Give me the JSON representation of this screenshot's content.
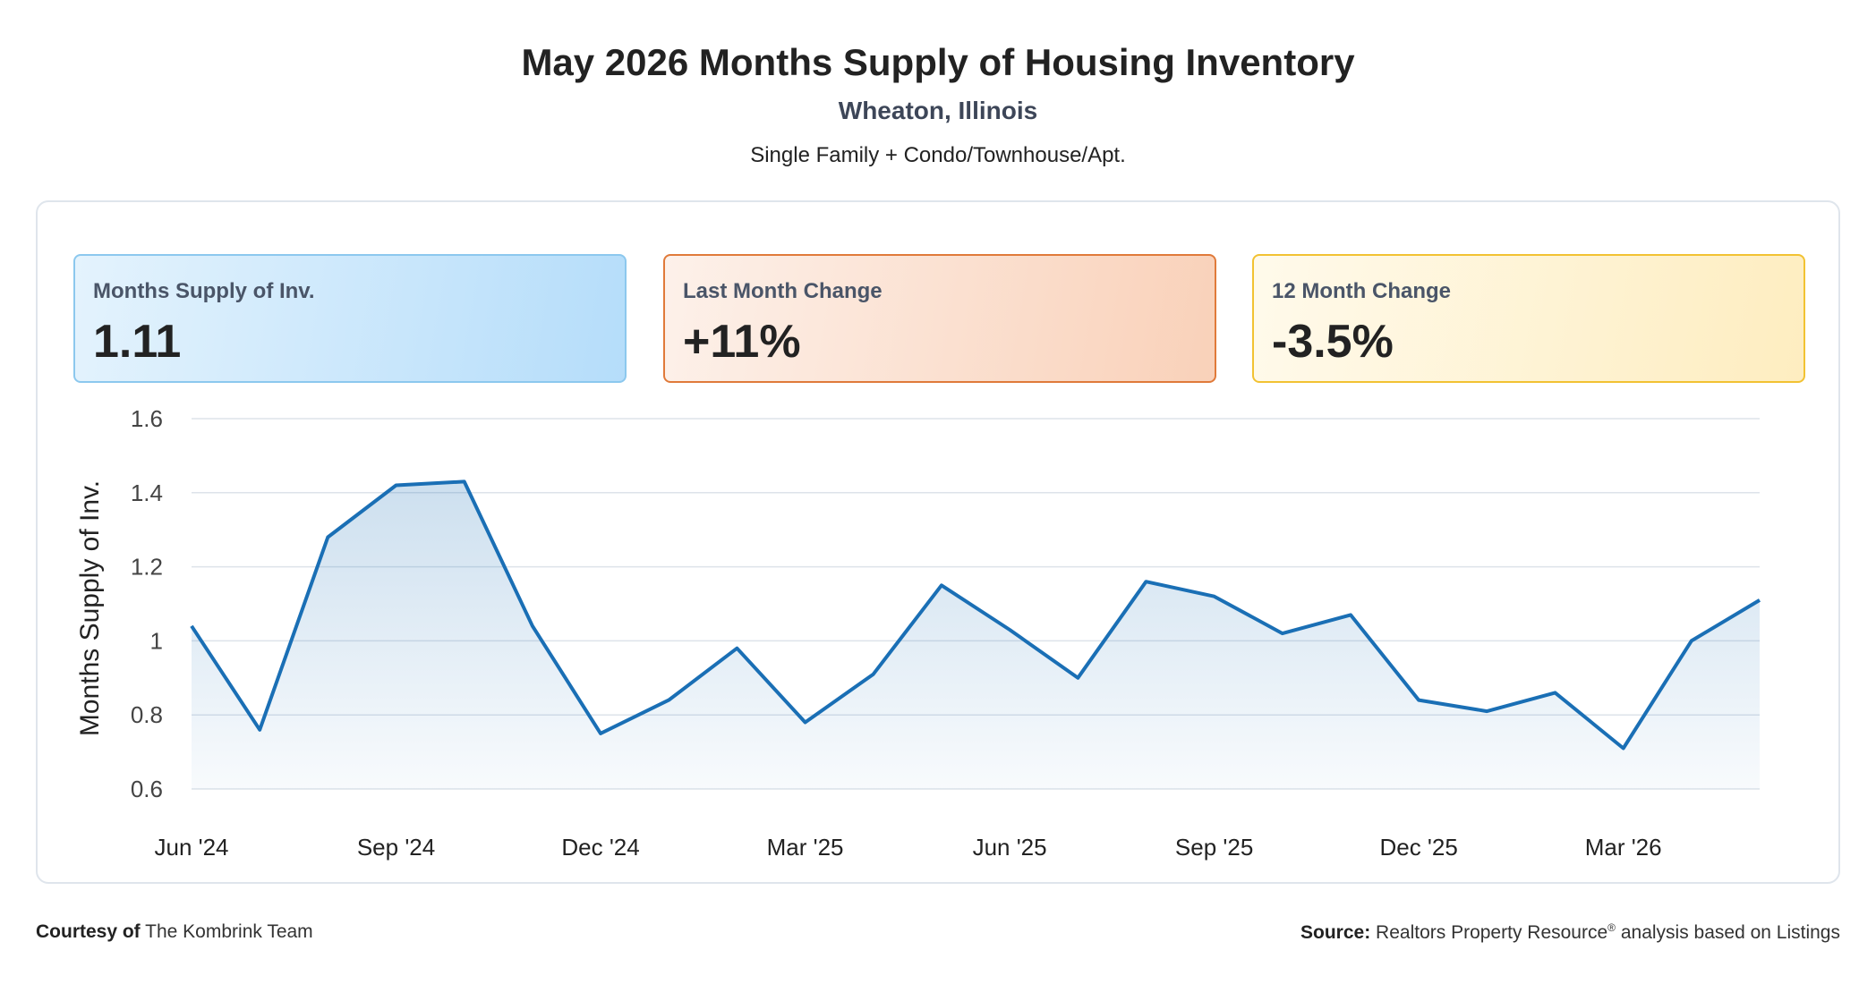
{
  "header": {
    "title": "May 2026 Months Supply of Housing Inventory",
    "location": "Wheaton, Illinois",
    "segment": "Single Family + Condo/Townhouse/Apt."
  },
  "cards": [
    {
      "label": "Months Supply of Inv.",
      "value": "1.11",
      "color": "#b5ddfa"
    },
    {
      "label": "Last Month Change",
      "value": "+11%",
      "color": "#f9d1b9"
    },
    {
      "label": "12 Month Change",
      "value": "-3.5%",
      "color": "#feedc0"
    }
  ],
  "footer": {
    "courtesy_label": "Courtesy of",
    "courtesy_name": "The Kombrink Team",
    "source_label": "Source:",
    "source_text_1": "Realtors Property Resource",
    "source_reg": "®",
    "source_text_2": " analysis based on Listings"
  },
  "chart_data": {
    "type": "area",
    "ylabel": "Months Supply of Inv.",
    "ylim": [
      0.6,
      1.6
    ],
    "yticks": [
      0.6,
      0.8,
      1,
      1.2,
      1.4,
      1.6
    ],
    "ytick_labels": [
      "0.6",
      "0.8",
      "1",
      "1.2",
      "1.4",
      "1.6"
    ],
    "x": [
      "Jun '24",
      "Jul '24",
      "Aug '24",
      "Sep '24",
      "Oct '24",
      "Nov '24",
      "Dec '24",
      "Jan '25",
      "Feb '25",
      "Mar '25",
      "Apr '25",
      "May '25",
      "Jun '25",
      "Jul '25",
      "Aug '25",
      "Sep '25",
      "Oct '25",
      "Nov '25",
      "Dec '25",
      "Jan '26",
      "Feb '26",
      "Mar '26",
      "Apr '26",
      "May '26"
    ],
    "xtick_labels": [
      "Jun '24",
      "Sep '24",
      "Dec '24",
      "Mar '25",
      "Jun '25",
      "Sep '25",
      "Dec '25",
      "Mar '26"
    ],
    "series": [
      {
        "values": [
          1.04,
          0.76,
          1.28,
          1.42,
          1.43,
          1.04,
          0.75,
          0.84,
          0.98,
          0.78,
          0.91,
          1.15,
          1.03,
          0.9,
          1.16,
          1.12,
          1.02,
          1.07,
          0.84,
          0.81,
          0.86,
          0.71,
          1.0,
          1.11
        ],
        "color": "#1a6fb5"
      }
    ],
    "grid": true,
    "legend": "none"
  }
}
